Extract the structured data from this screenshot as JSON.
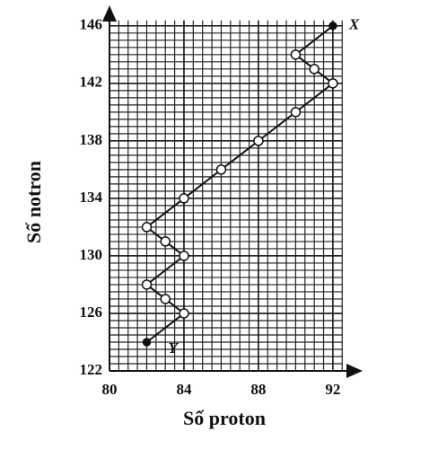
{
  "chart_data": {
    "type": "line",
    "x_label": "Số proton",
    "y_label": "Số notron",
    "x": [
      92,
      90,
      91,
      92,
      90,
      88,
      86,
      84,
      82,
      83,
      84,
      82,
      83,
      84,
      82
    ],
    "series": [
      {
        "color": "#111111",
        "values": [
          146,
          144,
          143,
          142,
          140,
          138,
          136,
          134,
          132,
          131,
          130,
          128,
          127,
          126,
          124
        ]
      }
    ],
    "start_label": "X",
    "end_label": "Y",
    "xlim": [
      80,
      93.5
    ],
    "ylim": [
      122,
      147.3
    ],
    "xticks": [
      80,
      84,
      88,
      92
    ],
    "yticks": [
      122,
      126,
      130,
      134,
      138,
      142,
      146
    ],
    "grid": true
  }
}
